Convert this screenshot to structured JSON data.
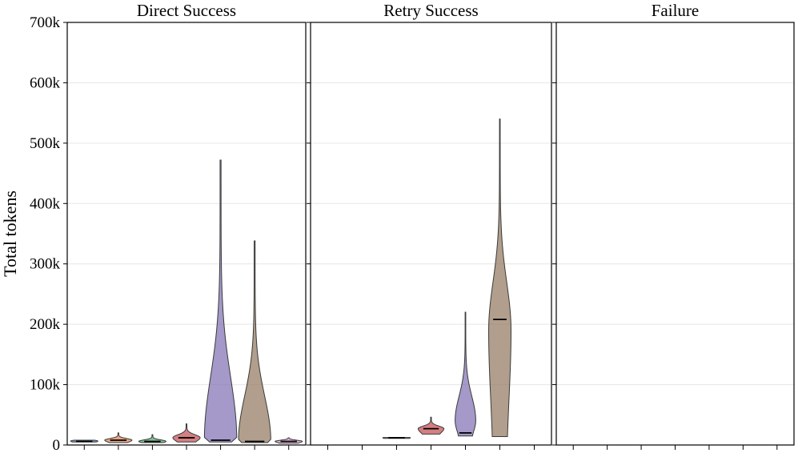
{
  "chart_data": {
    "type": "violin",
    "ylabel": "Total tokens",
    "ylim": [
      0,
      700000
    ],
    "yticks": [
      0,
      100000,
      200000,
      300000,
      400000,
      500000,
      600000,
      700000
    ],
    "ytick_labels": [
      "0",
      "100k",
      "200k",
      "300k",
      "400k",
      "500k",
      "600k",
      "700k"
    ],
    "grid": true,
    "group_colors": [
      "#4c72b0",
      "#dd8452",
      "#55a868",
      "#c44e52",
      "#8172b3",
      "#937860",
      "#da8bc3"
    ],
    "panels": [
      {
        "title": "Direct Success",
        "violins": [
          {
            "group": 1,
            "min": 5000,
            "max": 8000,
            "median": 6000,
            "peak": 6500,
            "width": 0.8
          },
          {
            "group": 2,
            "min": 4000,
            "max": 20000,
            "median": 8000,
            "peak": 8000,
            "width": 0.8
          },
          {
            "group": 3,
            "min": 4000,
            "max": 17000,
            "median": 6000,
            "peak": 6000,
            "width": 0.8
          },
          {
            "group": 4,
            "min": 5000,
            "max": 35000,
            "median": 12000,
            "peak": 12000,
            "width": 0.8
          },
          {
            "group": 5,
            "min": 5000,
            "max": 472000,
            "median": 8000,
            "peak": 8000,
            "width": 0.95
          },
          {
            "group": 6,
            "min": 4000,
            "max": 338000,
            "median": 6000,
            "peak": 6000,
            "width": 0.95
          },
          {
            "group": 7,
            "min": 3000,
            "max": 12000,
            "median": 6000,
            "peak": 6000,
            "width": 0.8
          }
        ]
      },
      {
        "title": "Retry Success",
        "violins": [
          {
            "group": 3,
            "min": 11000,
            "max": 12500,
            "median": 12000,
            "peak": 12000,
            "width": 0.8
          },
          {
            "group": 4,
            "min": 18000,
            "max": 46000,
            "median": 27000,
            "peak": 27000,
            "width": 0.75
          },
          {
            "group": 5,
            "min": 15000,
            "max": 220000,
            "median": 20000,
            "peak": 40000,
            "width": 0.6
          },
          {
            "group": 6,
            "min": 14000,
            "max": 540000,
            "median": 208000,
            "peak": 190000,
            "width": 0.65
          }
        ]
      },
      {
        "title": "Failure",
        "violins": []
      }
    ]
  }
}
